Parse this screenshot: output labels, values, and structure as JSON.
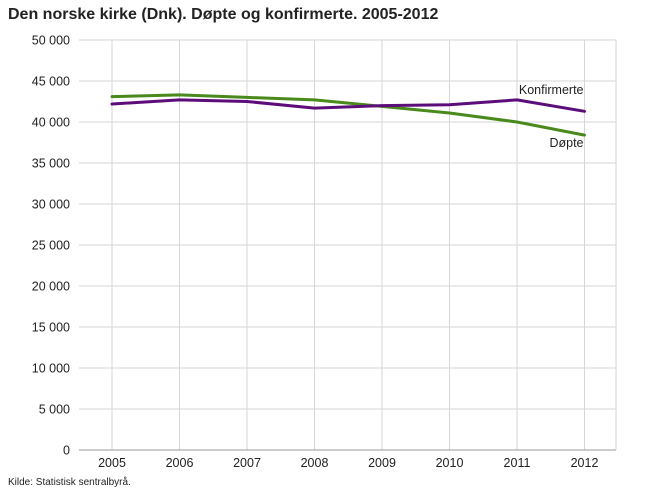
{
  "chart_data": {
    "type": "line",
    "title": "Den norske kirke (Dnk). Døpte og konfirmerte. 2005-2012",
    "xlabel": "",
    "ylabel": "",
    "x": [
      "2005",
      "2006",
      "2007",
      "2008",
      "2009",
      "2010",
      "2011",
      "2012"
    ],
    "ylim": [
      0,
      50000
    ],
    "yticks": [
      0,
      5000,
      10000,
      15000,
      20000,
      25000,
      30000,
      35000,
      40000,
      45000,
      50000
    ],
    "ytick_labels": [
      "0",
      "5 000",
      "10 000",
      "15 000",
      "20 000",
      "25 000",
      "30 000",
      "35 000",
      "40 000",
      "45 000",
      "50 000"
    ],
    "grid": true,
    "legend": "direct labels at line ends",
    "series": [
      {
        "name": "Døpte",
        "color": "#4a8a1c",
        "values": [
          43100,
          43300,
          43000,
          42700,
          41900,
          41100,
          40000,
          38400
        ]
      },
      {
        "name": "Konfirmerte",
        "color": "#5d0d7a",
        "values": [
          42200,
          42700,
          42500,
          41700,
          42000,
          42100,
          42700,
          41300
        ]
      }
    ],
    "source": "Kilde: Statistisk sentralbyrå."
  }
}
